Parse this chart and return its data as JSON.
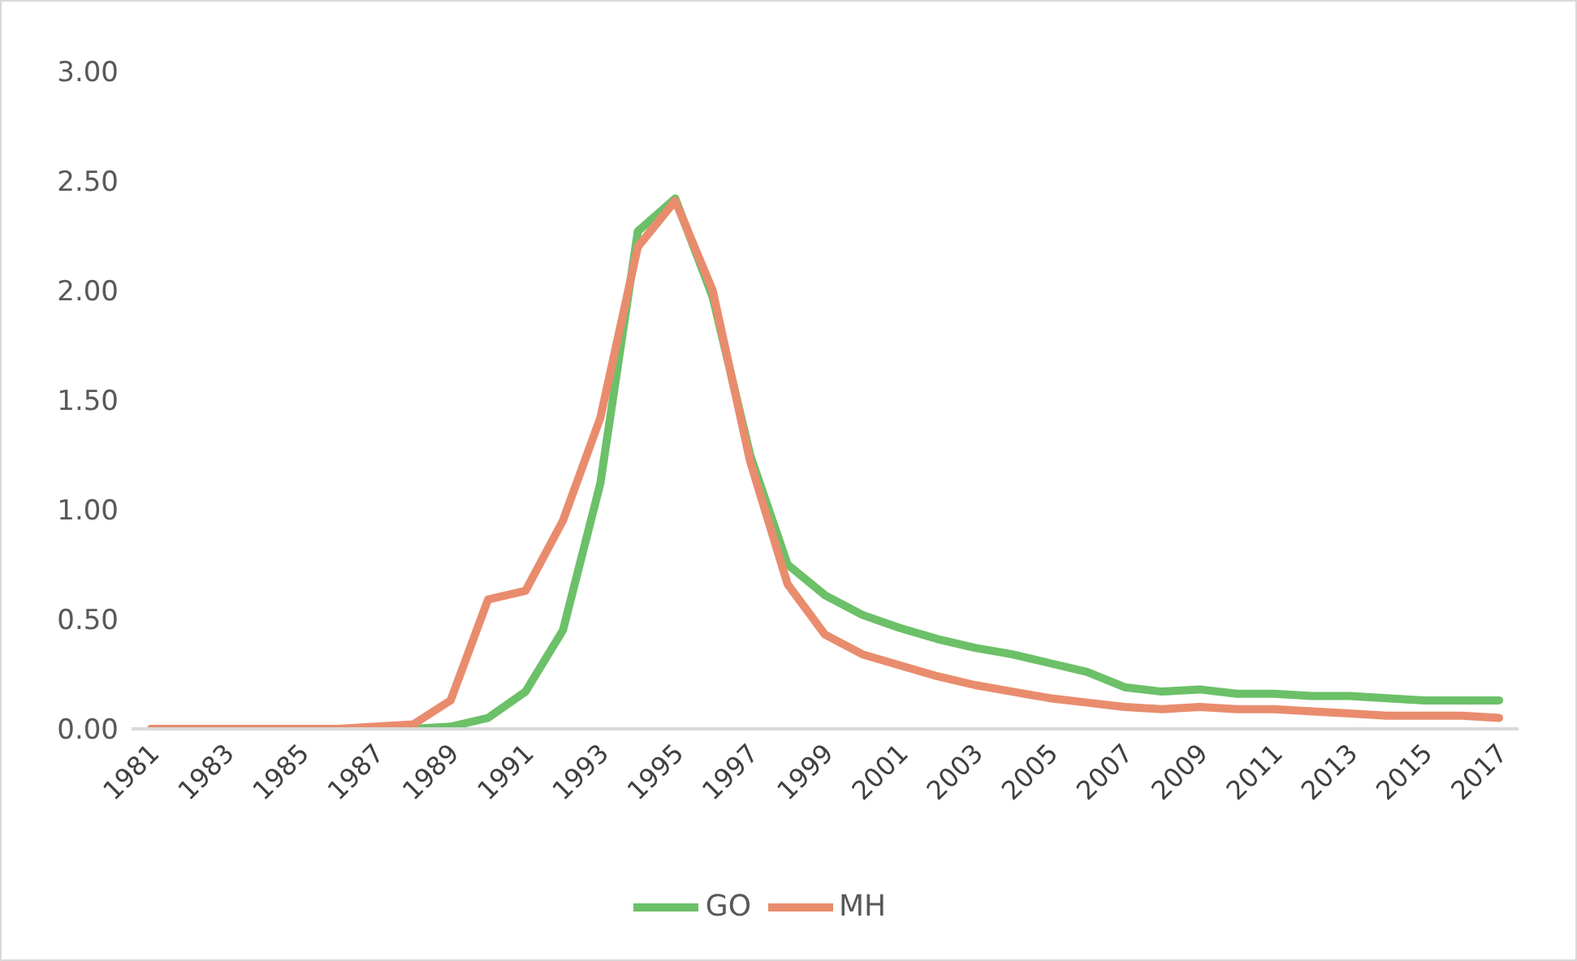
{
  "chart_data": {
    "type": "line",
    "categories": [
      "1981",
      null,
      "1983",
      null,
      "1985",
      null,
      "1987",
      null,
      "1989",
      null,
      "1991",
      null,
      "1993",
      null,
      "1995",
      null,
      "1997",
      null,
      "1999",
      null,
      "2001",
      null,
      "2003",
      null,
      "2005",
      null,
      "2007",
      null,
      "2009",
      null,
      "2011",
      null,
      "2013",
      null,
      "2015",
      null,
      "2017"
    ],
    "series": [
      {
        "name": "GO",
        "color": "#6cc068",
        "values": [
          0,
          0,
          0,
          0,
          0,
          0,
          0,
          0,
          0.01,
          0.05,
          0.17,
          0.45,
          1.12,
          2.27,
          2.42,
          1.97,
          1.25,
          0.75,
          0.61,
          0.52,
          0.46,
          0.41,
          0.37,
          0.34,
          0.3,
          0.26,
          0.19,
          0.17,
          0.18,
          0.16,
          0.16,
          0.15,
          0.15,
          0.14,
          0.13,
          0.13,
          0.13
        ]
      },
      {
        "name": "MH",
        "color": "#e98c6e",
        "values": [
          0,
          0,
          0,
          0,
          0,
          0,
          0.01,
          0.02,
          0.13,
          0.59,
          0.63,
          0.95,
          1.42,
          2.2,
          2.41,
          2.0,
          1.22,
          0.66,
          0.43,
          0.34,
          0.29,
          0.24,
          0.2,
          0.17,
          0.14,
          0.12,
          0.1,
          0.09,
          0.1,
          0.09,
          0.09,
          0.08,
          0.07,
          0.06,
          0.06,
          0.06,
          0.05
        ]
      }
    ],
    "ylim": [
      0,
      3
    ],
    "yticks": [
      {
        "value": 0,
        "label": "0.00"
      },
      {
        "value": 0.5,
        "label": "0.50"
      },
      {
        "value": 1,
        "label": "1.00"
      },
      {
        "value": 1.5,
        "label": "1.50"
      },
      {
        "value": 2,
        "label": "2.00"
      },
      {
        "value": 2.5,
        "label": "2.50"
      },
      {
        "value": 3,
        "label": "3.00"
      }
    ],
    "grid": false,
    "legend": "bottom",
    "marker": "none",
    "line_style": "solid"
  }
}
